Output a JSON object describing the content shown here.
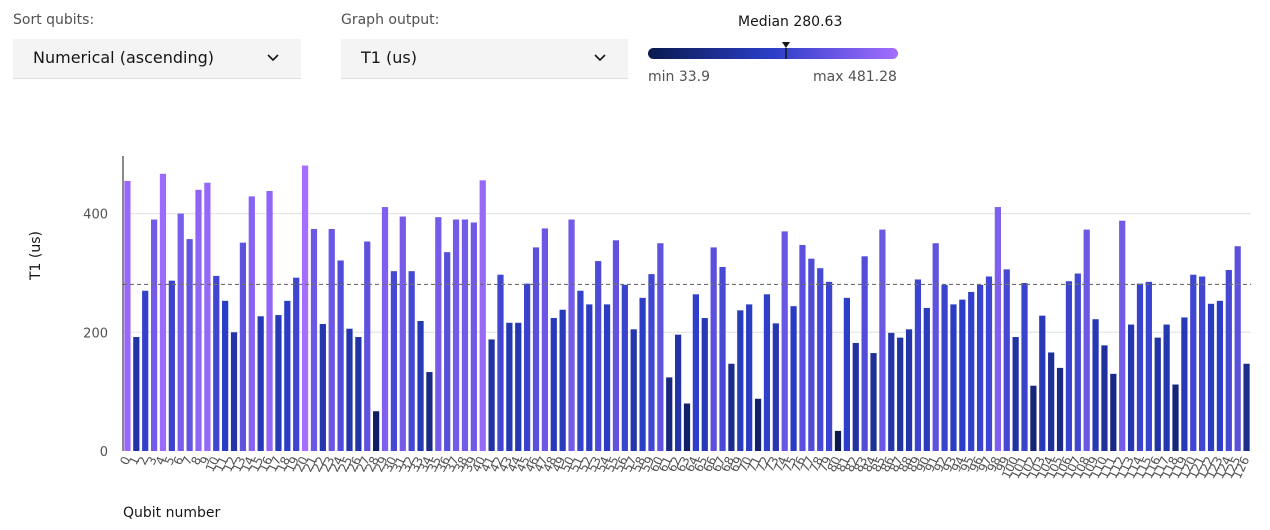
{
  "controls": {
    "sort_label": "Sort qubits:",
    "sort_value": "Numerical (ascending)",
    "graph_label": "Graph output:",
    "graph_value": "T1 (us)",
    "median_text": "Median 280.63",
    "min_text": "min 33.9",
    "max_text": "max 481.28",
    "chevron_icon": "chevron-down-icon"
  },
  "colors": {
    "gradient_start": "#0a1a4f",
    "gradient_mid": "#2c3ec8",
    "gradient_end": "#a56eff",
    "median_line": "#6f6f6f",
    "axis": "#161616",
    "grid": "#e0e0e0"
  },
  "chart_data": {
    "type": "bar",
    "xlabel": "Qubit number",
    "ylabel": "T1 (us)",
    "ylim": [
      0,
      497
    ],
    "yticks": [
      0,
      200,
      400
    ],
    "median": 280.63,
    "min": 33.9,
    "max": 481.28,
    "grid": true,
    "categories": [
      "0",
      "1",
      "2",
      "3",
      "4",
      "5",
      "6",
      "7",
      "8",
      "9",
      "10",
      "11",
      "12",
      "13",
      "14",
      "15",
      "16",
      "17",
      "18",
      "19",
      "20",
      "21",
      "22",
      "23",
      "24",
      "25",
      "26",
      "27",
      "28",
      "29",
      "30",
      "31",
      "32",
      "33",
      "34",
      "35",
      "36",
      "37",
      "38",
      "39",
      "40",
      "41",
      "42",
      "43",
      "44",
      "45",
      "46",
      "47",
      "48",
      "49",
      "50",
      "51",
      "52",
      "53",
      "54",
      "55",
      "56",
      "57",
      "58",
      "59",
      "60",
      "61",
      "62",
      "63",
      "64",
      "65",
      "66",
      "67",
      "68",
      "69",
      "70",
      "71",
      "72",
      "73",
      "74",
      "75",
      "76",
      "77",
      "78",
      "79",
      "80",
      "81",
      "82",
      "83",
      "84",
      "85",
      "86",
      "87",
      "88",
      "89",
      "90",
      "91",
      "92",
      "93",
      "94",
      "95",
      "96",
      "97",
      "98",
      "99",
      "100",
      "101",
      "102",
      "103",
      "104",
      "105",
      "106",
      "107",
      "108",
      "109",
      "110",
      "111",
      "112",
      "113",
      "114",
      "115",
      "116",
      "117",
      "118",
      "119",
      "120",
      "121",
      "122",
      "123",
      "124",
      "125",
      "126"
    ],
    "values": [
      455,
      192,
      270,
      390,
      467,
      287,
      400,
      357,
      440,
      452,
      295,
      253,
      200,
      351,
      429,
      227,
      438,
      229,
      253,
      292,
      481,
      374,
      214,
      374,
      321,
      206,
      192,
      353,
      67,
      411,
      303,
      395,
      303,
      219,
      133,
      394,
      335,
      390,
      390,
      385,
      456,
      188,
      297,
      216,
      216,
      282,
      343,
      375,
      224,
      238,
      390,
      270,
      247,
      320,
      247,
      355,
      280,
      205,
      258,
      298,
      350,
      124,
      196,
      80,
      264,
      224,
      343,
      310,
      147,
      237,
      247,
      88,
      264,
      215,
      370,
      244,
      347,
      324,
      308,
      285,
      33.9,
      258,
      182,
      328,
      165,
      373,
      199,
      191,
      205,
      289,
      241,
      350,
      280,
      247,
      255,
      268,
      280,
      294,
      411,
      306,
      192,
      283,
      110,
      228,
      166,
      140,
      286,
      299,
      373,
      222,
      178,
      130,
      388,
      213,
      282,
      285,
      191,
      213,
      112,
      225,
      297,
      294,
      248,
      253,
      305,
      345,
      147
    ]
  }
}
